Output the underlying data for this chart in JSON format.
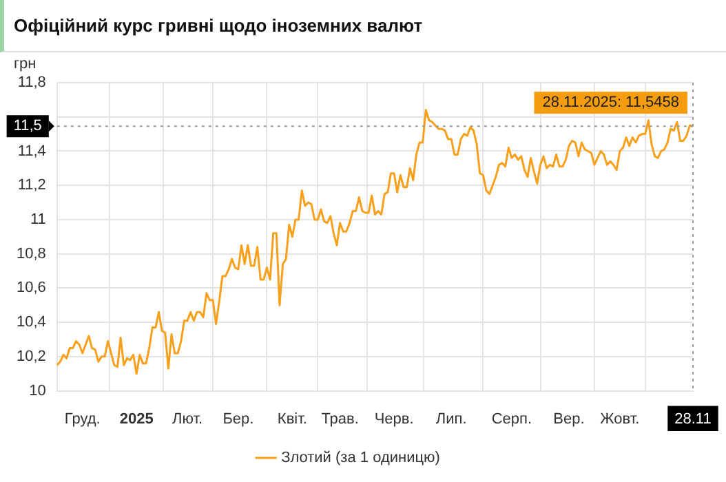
{
  "chart_data": {
    "type": "line",
    "title": "Офіційний курс гривні щодо іноземних валют",
    "ylabel": "грн",
    "categories": [
      null,
      null,
      null,
      null,
      null,
      null,
      null,
      null,
      "Груд.",
      null,
      null,
      null,
      null,
      null,
      null,
      null,
      null,
      null,
      null,
      null,
      null,
      null,
      null,
      null,
      null,
      "2025",
      null,
      null,
      null,
      null,
      null,
      null,
      null,
      null,
      null,
      null,
      null,
      null,
      null,
      null,
      null,
      "Лют.",
      null,
      null,
      null,
      null,
      null,
      null,
      null,
      null,
      null,
      null,
      null,
      null,
      null,
      null,
      null,
      "Бер.",
      null,
      null,
      null,
      null,
      null,
      null,
      null,
      null,
      null,
      null,
      null,
      null,
      null,
      null,
      null,
      null,
      "Квіт.",
      null,
      null,
      null,
      null,
      null,
      null,
      null,
      null,
      null,
      null,
      null,
      null,
      null,
      null,
      "Трав.",
      null,
      null,
      null,
      null,
      null,
      null,
      null,
      null,
      null,
      null,
      null,
      null,
      null,
      null,
      null,
      null,
      "Черв.",
      null,
      null,
      null,
      null,
      null,
      null,
      null,
      null,
      null,
      null,
      null,
      null,
      null,
      null,
      null,
      null,
      null,
      "Лип.",
      null,
      null,
      null,
      null,
      null,
      null,
      null,
      null,
      null,
      null,
      null,
      null,
      null,
      null,
      null,
      null,
      null,
      null,
      "Серп.",
      null,
      null,
      null,
      null,
      null,
      null,
      null,
      null,
      null,
      null,
      null,
      null,
      null,
      null,
      null,
      null,
      null,
      "Вер.",
      null,
      null,
      null,
      null,
      null,
      null,
      null,
      null,
      null,
      null,
      null,
      null,
      null,
      null,
      null,
      "Жовт.",
      null,
      null,
      null,
      null,
      null,
      null,
      null,
      null,
      null,
      null,
      null,
      null,
      null,
      null,
      null,
      null,
      null,
      null,
      null,
      null,
      null,
      null,
      "28.11"
    ],
    "series": [
      {
        "name": "Злотий (за 1 одиницю)",
        "color": "#f7a01c",
        "values": [
          10.15,
          10.17,
          10.21,
          10.19,
          10.25,
          10.25,
          10.29,
          10.27,
          10.22,
          10.27,
          10.32,
          10.25,
          10.24,
          10.17,
          10.2,
          10.2,
          10.29,
          10.22,
          10.15,
          10.14,
          10.31,
          10.15,
          10.19,
          10.18,
          10.21,
          10.1,
          10.21,
          10.16,
          10.16,
          10.25,
          10.37,
          10.37,
          10.46,
          10.35,
          10.34,
          10.13,
          10.33,
          10.22,
          10.22,
          10.29,
          10.41,
          10.41,
          10.46,
          10.41,
          10.46,
          10.46,
          10.43,
          10.57,
          10.53,
          10.53,
          10.39,
          10.52,
          10.67,
          10.67,
          10.71,
          10.77,
          10.72,
          10.71,
          10.85,
          10.74,
          10.85,
          10.73,
          10.73,
          10.84,
          10.65,
          10.65,
          10.72,
          10.65,
          10.92,
          10.92,
          10.5,
          10.74,
          10.77,
          10.97,
          10.9,
          11.0,
          11.0,
          11.17,
          11.08,
          11.1,
          11.09,
          11.0,
          11.0,
          11.06,
          10.99,
          10.98,
          11.02,
          10.92,
          10.85,
          10.98,
          10.93,
          10.93,
          10.98,
          11.05,
          11.05,
          11.13,
          11.05,
          11.04,
          11.04,
          11.14,
          11.03,
          11.05,
          11.03,
          11.15,
          11.16,
          11.27,
          11.27,
          11.16,
          11.26,
          11.19,
          11.19,
          11.3,
          11.23,
          11.38,
          11.45,
          11.45,
          11.64,
          11.58,
          11.57,
          11.55,
          11.53,
          11.53,
          11.52,
          11.47,
          11.47,
          11.38,
          11.38,
          11.47,
          11.5,
          11.49,
          11.54,
          11.52,
          11.44,
          11.27,
          11.26,
          11.17,
          11.15,
          11.2,
          11.25,
          11.32,
          11.33,
          11.31,
          11.42,
          11.36,
          11.38,
          11.35,
          11.37,
          11.29,
          11.25,
          11.36,
          11.28,
          11.21,
          11.32,
          11.37,
          11.3,
          11.32,
          11.31,
          11.38,
          11.31,
          11.31,
          11.35,
          11.43,
          11.46,
          11.45,
          11.37,
          11.45,
          11.41,
          11.4,
          11.39,
          11.32,
          11.36,
          11.4,
          11.38,
          11.32,
          11.34,
          11.32,
          11.29,
          11.4,
          11.42,
          11.48,
          11.43,
          11.48,
          11.45,
          11.49,
          11.5,
          11.5,
          11.58,
          11.44,
          11.37,
          11.36,
          11.4,
          11.41,
          11.45,
          11.53,
          11.52,
          11.57,
          11.46,
          11.46,
          11.49,
          11.55,
          11.5458
        ]
      }
    ],
    "ylim": [
      10,
      11.8
    ],
    "yticks": [
      10,
      {
        "value": 10.2,
        "label": "10,2"
      },
      {
        "value": 10.4,
        "label": "10,4"
      },
      {
        "value": 10.6,
        "label": "10,6"
      },
      {
        "value": 10.8,
        "label": "10,8"
      },
      11,
      {
        "value": 11.2,
        "label": "11,2"
      },
      {
        "value": 11.4,
        "label": "11,4"
      },
      {
        "value": 11.6,
        "label": null
      },
      {
        "value": 11.8,
        "label": "11,8"
      }
    ],
    "grid": true,
    "legend": "bottom",
    "marker": "none",
    "ref_lines": [
      {
        "axis": "y",
        "value": 11.5458,
        "label": "11,5",
        "line_style": "dotted"
      },
      {
        "axis": "x",
        "value": "28.11",
        "line_style": "dotted"
      }
    ],
    "annotations": [
      {
        "text": "28.11.2025: 11,5458",
        "x": "28.11",
        "y": 11.5458
      }
    ]
  }
}
